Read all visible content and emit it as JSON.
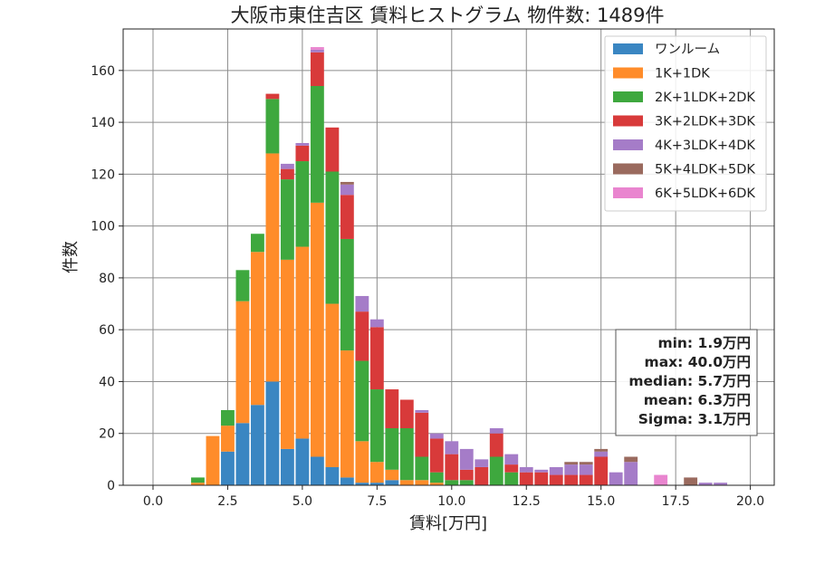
{
  "chart_data": {
    "type": "bar",
    "stacked": true,
    "title": "大阪市東住吉区 賃料ヒストグラム 物件数: 1489件",
    "xlabel": "賃料[万円]",
    "ylabel": "件数",
    "xlim": [
      -1.0,
      20.8
    ],
    "ylim": [
      0,
      176
    ],
    "xticks": [
      "0.0",
      "2.5",
      "5.0",
      "7.5",
      "10.0",
      "12.5",
      "15.0",
      "17.5",
      "20.0"
    ],
    "xtick_values": [
      0,
      2.5,
      5,
      7.5,
      10,
      12.5,
      15,
      17.5,
      20
    ],
    "yticks": [
      "0",
      "20",
      "40",
      "60",
      "80",
      "100",
      "120",
      "140",
      "160"
    ],
    "ytick_values": [
      0,
      20,
      40,
      60,
      80,
      100,
      120,
      140,
      160
    ],
    "grid": true,
    "legend_position": "top-right",
    "bin_width": 0.5,
    "bin_centers": [
      1.5,
      2.0,
      2.5,
      3.0,
      3.5,
      4.0,
      4.5,
      5.0,
      5.5,
      6.0,
      6.5,
      7.0,
      7.5,
      8.0,
      8.5,
      9.0,
      9.5,
      10.0,
      10.5,
      11.0,
      11.5,
      12.0,
      12.5,
      13.0,
      13.5,
      14.0,
      14.5,
      15.0,
      15.5,
      16.0,
      17.0,
      18.0,
      18.5,
      19.0
    ],
    "series": [
      {
        "name": "ワンルーム",
        "color": "#3a86c2",
        "values": [
          0,
          0,
          13,
          24,
          31,
          40,
          14,
          18,
          11,
          7,
          3,
          1,
          1,
          2,
          0,
          0,
          0,
          0,
          0,
          0,
          0,
          0,
          0,
          0,
          0,
          0,
          0,
          0,
          0,
          0,
          0,
          0,
          0,
          0
        ]
      },
      {
        "name": "1K+1DK",
        "color": "#ff8c2a",
        "values": [
          1,
          19,
          10,
          47,
          59,
          88,
          73,
          74,
          98,
          63,
          49,
          16,
          8,
          4,
          2,
          2,
          1,
          0,
          0,
          0,
          0,
          0,
          0,
          0,
          0,
          0,
          0,
          0,
          0,
          0,
          0,
          0,
          0,
          0
        ]
      },
      {
        "name": "2K+1LDK+2DK",
        "color": "#3ea83e",
        "values": [
          2,
          0,
          6,
          12,
          7,
          21,
          31,
          33,
          45,
          51,
          43,
          31,
          28,
          16,
          20,
          9,
          4,
          2,
          2,
          0,
          11,
          5,
          0,
          0,
          0,
          0,
          0,
          0,
          0,
          0,
          0,
          0,
          0,
          0
        ]
      },
      {
        "name": "3K+2LDK+3DK",
        "color": "#d83a3a",
        "values": [
          0,
          0,
          0,
          0,
          0,
          2,
          4,
          6,
          13,
          17,
          17,
          19,
          24,
          15,
          11,
          17,
          13,
          10,
          4,
          7,
          9,
          3,
          5,
          5,
          4,
          4,
          4,
          11,
          0,
          0,
          0,
          0,
          0,
          0
        ]
      },
      {
        "name": "4K+3LDK+4DK",
        "color": "#a57cc8",
        "values": [
          0,
          0,
          0,
          0,
          0,
          0,
          2,
          1,
          1,
          0,
          4,
          6,
          3,
          0,
          0,
          1,
          2,
          5,
          8,
          3,
          2,
          4,
          2,
          1,
          3,
          4,
          4,
          2,
          5,
          9,
          0,
          0,
          1,
          1
        ]
      },
      {
        "name": "5K+4LDK+5DK",
        "color": "#9a6a5e",
        "values": [
          0,
          0,
          0,
          0,
          0,
          0,
          0,
          0,
          0,
          0,
          1,
          0,
          0,
          0,
          0,
          0,
          0,
          0,
          0,
          0,
          0,
          0,
          0,
          0,
          0,
          1,
          1,
          1,
          0,
          2,
          0,
          3,
          0,
          0
        ]
      },
      {
        "name": "6K+5LDK+6DK",
        "color": "#e985cf",
        "values": [
          0,
          0,
          0,
          0,
          0,
          0,
          0,
          0,
          1,
          0,
          0,
          0,
          0,
          0,
          0,
          0,
          0,
          0,
          0,
          0,
          0,
          0,
          0,
          0,
          0,
          0,
          0,
          0,
          0,
          0,
          4,
          0,
          0,
          0
        ]
      }
    ],
    "stats_box": [
      "min: 1.9万円",
      "max: 40.0万円",
      "median: 5.7万円",
      "mean: 6.3万円",
      "Sigma: 3.1万円"
    ]
  }
}
